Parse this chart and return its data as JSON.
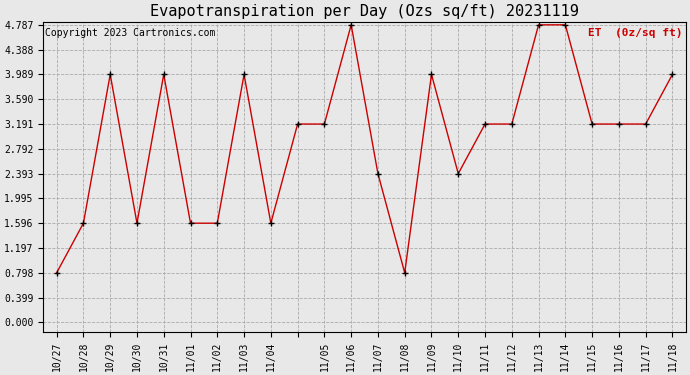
{
  "title": "Evapotranspiration per Day (Ozs sq/ft) 20231119",
  "copyright": "Copyright 2023 Cartronics.com",
  "legend_label": "ET  (0z/sq ft)",
  "dates": [
    "10/27",
    "10/28",
    "10/29",
    "10/30",
    "10/31",
    "11/01",
    "11/02",
    "11/03",
    "11/04",
    "11/05",
    "11/05",
    "11/06",
    "11/07",
    "11/08",
    "11/09",
    "11/10",
    "11/11",
    "11/12",
    "11/13",
    "11/14",
    "11/15",
    "11/16",
    "11/17",
    "11/18"
  ],
  "values": [
    0.798,
    1.596,
    3.989,
    1.596,
    3.989,
    1.596,
    1.596,
    3.989,
    1.596,
    3.191,
    3.191,
    4.787,
    2.393,
    0.798,
    3.989,
    2.393,
    3.191,
    3.191,
    4.787,
    4.787,
    3.191,
    3.191,
    3.191,
    3.989
  ],
  "xtick_labels": [
    "10/27",
    "10/28",
    "10/29",
    "10/30",
    "10/31",
    "11/01",
    "11/02",
    "11/03",
    "11/04",
    "",
    "11/05",
    "11/06",
    "11/07",
    "11/08",
    "11/09",
    "11/10",
    "11/11",
    "11/12",
    "11/13",
    "11/14",
    "11/15",
    "11/16",
    "11/17",
    "11/18"
  ],
  "yticks": [
    0.0,
    0.399,
    0.798,
    1.197,
    1.596,
    1.995,
    2.393,
    2.792,
    3.191,
    3.59,
    3.989,
    4.388,
    4.787
  ],
  "ymin": 0.0,
  "ymax": 4.787,
  "line_color": "#cc0000",
  "marker_color": "#000000",
  "bg_color": "#e8e8e8",
  "grid_color": "#aaaaaa",
  "title_fontsize": 11,
  "label_fontsize": 7,
  "copyright_fontsize": 7,
  "legend_color": "#cc0000"
}
